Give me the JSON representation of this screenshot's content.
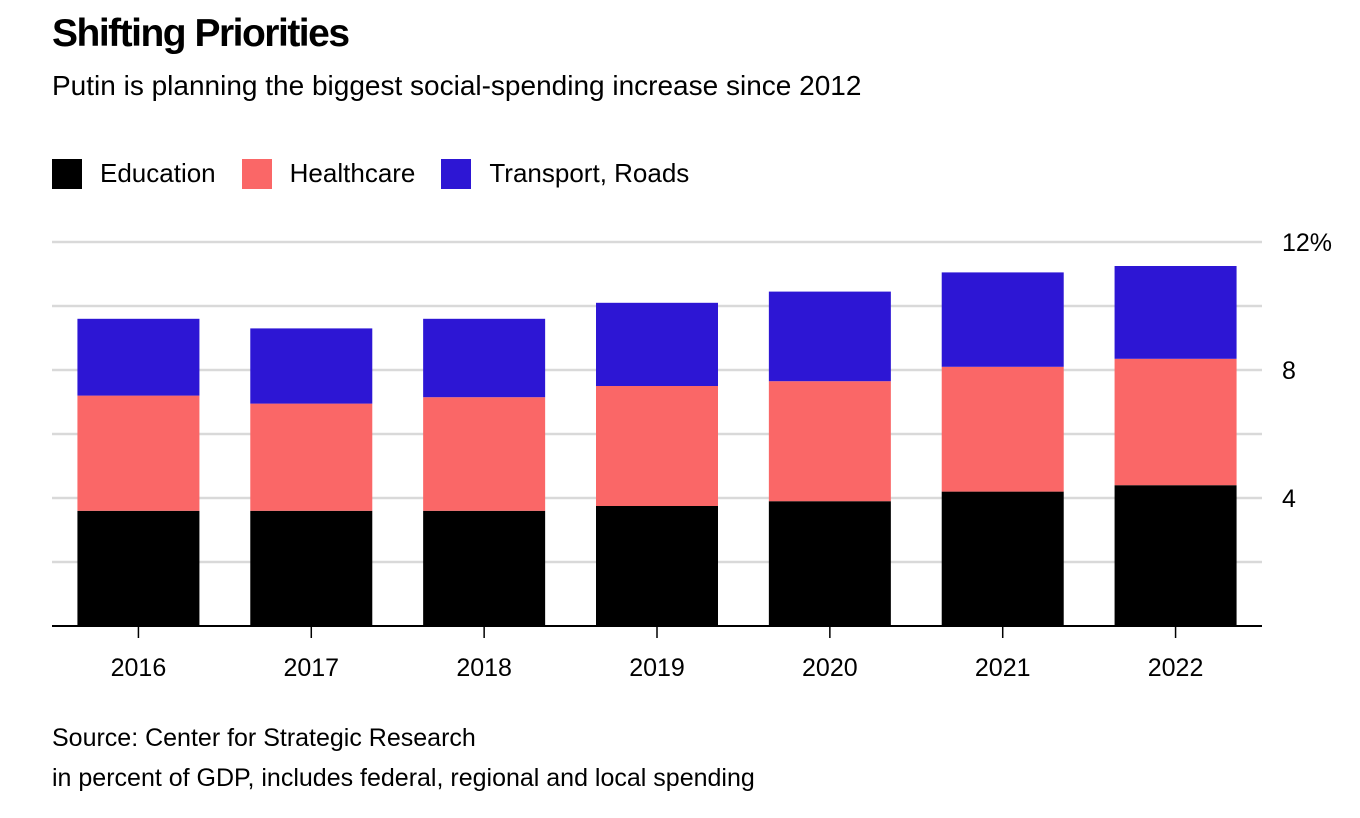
{
  "title": "Shifting Priorities",
  "subtitle": "Putin is planning the biggest social-spending increase since 2012",
  "legend": [
    {
      "label": "Education",
      "color": "#000000"
    },
    {
      "label": "Healthcare",
      "color": "#fa6767"
    },
    {
      "label": "Transport, Roads",
      "color": "#2d16d4"
    }
  ],
  "source": "Source: Center for Strategic Research",
  "note": "in percent of GDP, includes federal, regional and local spending",
  "chart_data": {
    "type": "bar",
    "stacked": true,
    "categories": [
      "2016",
      "2017",
      "2018",
      "2019",
      "2020",
      "2021",
      "2022"
    ],
    "series": [
      {
        "name": "Education",
        "color": "#000000",
        "values": [
          3.6,
          3.6,
          3.6,
          3.75,
          3.9,
          4.2,
          4.4
        ]
      },
      {
        "name": "Healthcare",
        "color": "#fa6767",
        "values": [
          3.6,
          3.35,
          3.55,
          3.75,
          3.75,
          3.9,
          3.95
        ]
      },
      {
        "name": "Transport, Roads",
        "color": "#2d16d4",
        "values": [
          2.4,
          2.35,
          2.45,
          2.6,
          2.8,
          2.95,
          2.9
        ]
      }
    ],
    "ylim": [
      0,
      12
    ],
    "yticks": [
      2,
      4,
      6,
      8,
      10,
      12
    ],
    "ytick_labels": {
      "4": "4",
      "8": "8",
      "12": "12%"
    },
    "y_axis_position": "right",
    "grid": true,
    "legend_position": "top-left"
  }
}
